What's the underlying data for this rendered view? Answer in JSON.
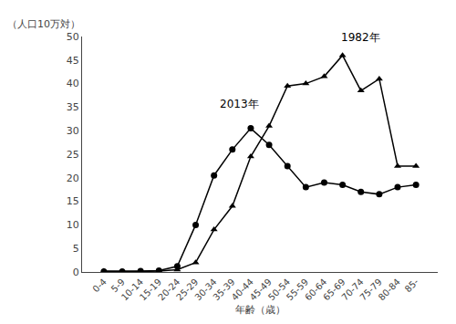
{
  "chart_data": {
    "type": "line",
    "categories": [
      "0-4",
      "5-9",
      "10-14",
      "15-19",
      "20-24",
      "25-29",
      "30-34",
      "35-39",
      "40-44",
      "45-49",
      "50-54",
      "55-59",
      "60-64",
      "65-69",
      "70-74",
      "75-79",
      "80-84",
      "85-"
    ],
    "series": [
      {
        "values": [
          0.2,
          0.1,
          0.1,
          0.2,
          0.5,
          2.0,
          9.0,
          14.0,
          24.5,
          31.0,
          39.5,
          40.0,
          41.5,
          46.0,
          38.5,
          41.0,
          22.5,
          22.5
        ],
        "color": "#000000",
        "marker": "triangle"
      },
      {
        "values": [
          0.1,
          0.1,
          0.2,
          0.3,
          1.2,
          10.0,
          20.5,
          26.0,
          30.5,
          27.0,
          22.5,
          18.0,
          19.0,
          18.5,
          17.0,
          16.5,
          18.0,
          18.5
        ],
        "color": "#000000",
        "marker": "circle"
      }
    ],
    "annotations": [
      {
        "text": "1982年",
        "x": 12.8,
        "y": 48
      },
      {
        "text": "2013年",
        "x": 6.2,
        "y": 34
      }
    ],
    "ylabel": "（人口10万対）",
    "xlabel": "年齢（歳）",
    "ylim": [
      0,
      50
    ],
    "yticks": [
      0,
      5,
      10,
      15,
      20,
      25,
      30,
      35,
      40,
      45,
      50
    ],
    "grid": false
  }
}
